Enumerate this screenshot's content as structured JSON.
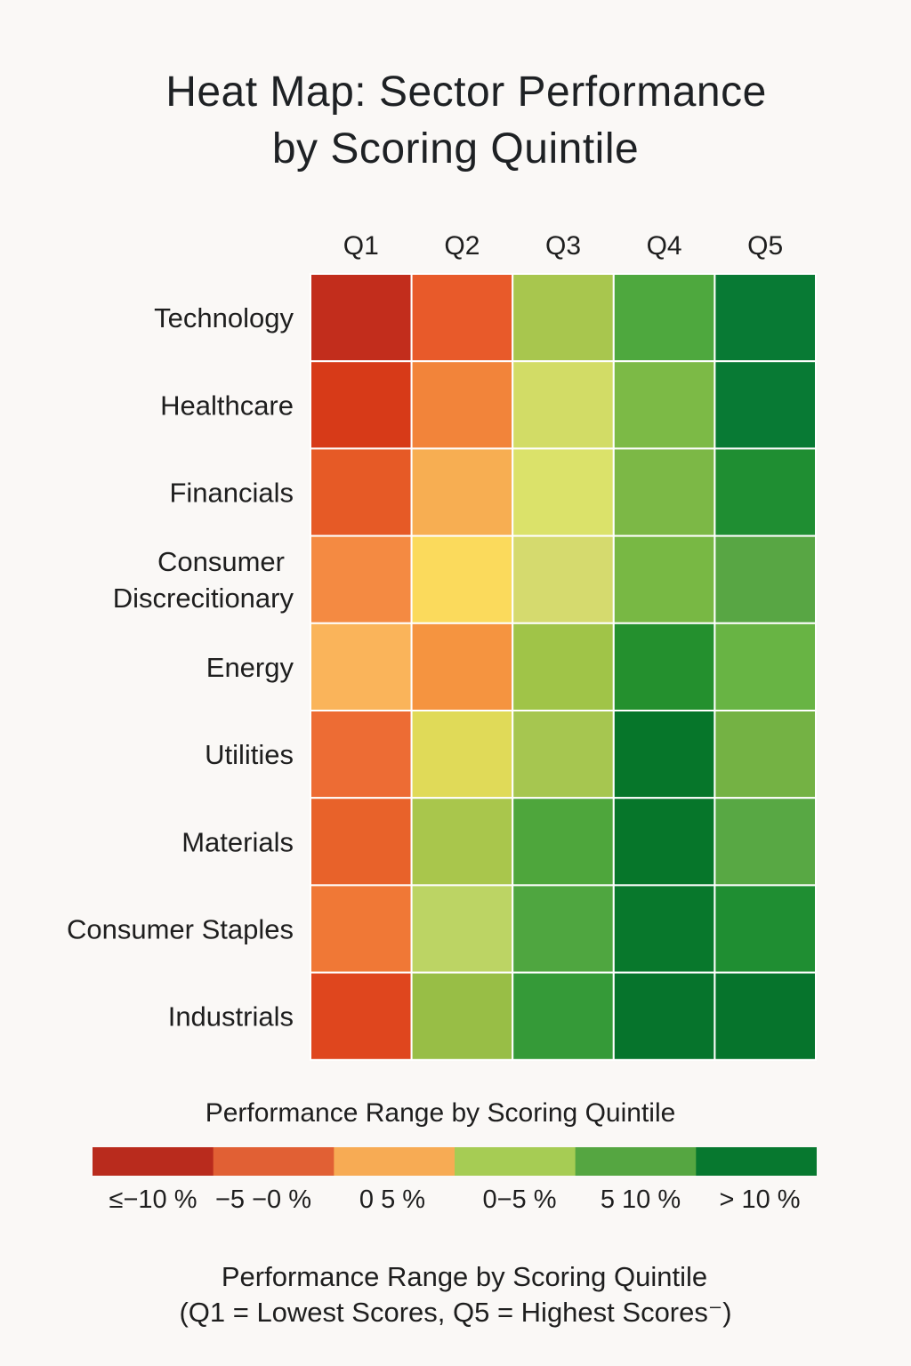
{
  "chart_data": {
    "type": "heatmap",
    "title": "Heat Map: Sector Performance by Scoring Quintile",
    "title_lines": [
      "Heat Map: Sector Performance",
      "by Scoring Quintile"
    ],
    "columns": [
      "Q1",
      "Q2",
      "Q3",
      "Q4",
      "Q5"
    ],
    "rows": [
      {
        "label": "Technology",
        "label_lines": [
          "Technology"
        ]
      },
      {
        "label": "Healthcare",
        "label_lines": [
          "Healthcare"
        ]
      },
      {
        "label": "Financials",
        "label_lines": [
          "Financials"
        ]
      },
      {
        "label": "Consumer Discrecitionary",
        "label_lines": [
          "Consumer",
          "Discrecitionary"
        ]
      },
      {
        "label": "Energy",
        "label_lines": [
          "Energy"
        ]
      },
      {
        "label": "Utilities",
        "label_lines": [
          "Utilities"
        ]
      },
      {
        "label": "Materials",
        "label_lines": [
          "Materials"
        ]
      },
      {
        "label": "Consumer Staples",
        "label_lines": [
          "Consumer Staples"
        ]
      },
      {
        "label": "Industrials",
        "label_lines": [
          "Industrials"
        ]
      }
    ],
    "cell_colors": [
      [
        "#c22d1c",
        "#e85a2a",
        "#a8c64e",
        "#4ea83e",
        "#087a34"
      ],
      [
        "#d73a18",
        "#f2843a",
        "#d2dc66",
        "#7cba46",
        "#087a34"
      ],
      [
        "#e65a26",
        "#f7ae52",
        "#dbe26a",
        "#7cb846",
        "#1f8e32"
      ],
      [
        "#f48a42",
        "#fbda5c",
        "#d5da6e",
        "#78b844",
        "#58a644"
      ],
      [
        "#fab45a",
        "#f59440",
        "#a0c448",
        "#24902e",
        "#68b444"
      ],
      [
        "#ed6c34",
        "#e0da58",
        "#a6c650",
        "#06762a",
        "#74b244"
      ],
      [
        "#e8622a",
        "#a9c64c",
        "#4ea63c",
        "#06762a",
        "#58a844"
      ],
      [
        "#f07836",
        "#bcd464",
        "#4fa640",
        "#08782c",
        "#1f8e32"
      ],
      [
        "#df461e",
        "#98be46",
        "#359a38",
        "#06742c",
        "#06742c"
      ]
    ],
    "legend": {
      "title": "Performance Range by Scoring Quintile",
      "colors": [
        "#b92b1d",
        "#e16034",
        "#f7ab54",
        "#a6cc54",
        "#55a641",
        "#07782f"
      ],
      "labels": [
        "≤−10 %",
        "−5 −0 %",
        "0  5 %",
        "0−5 %",
        "5  10 %",
        "> 10 %"
      ]
    },
    "footnote": [
      "Performance Range by Scoring Quintile",
      "(Q1 = Lowest Scores, Q5 = Highest Scores⁻)"
    ]
  }
}
